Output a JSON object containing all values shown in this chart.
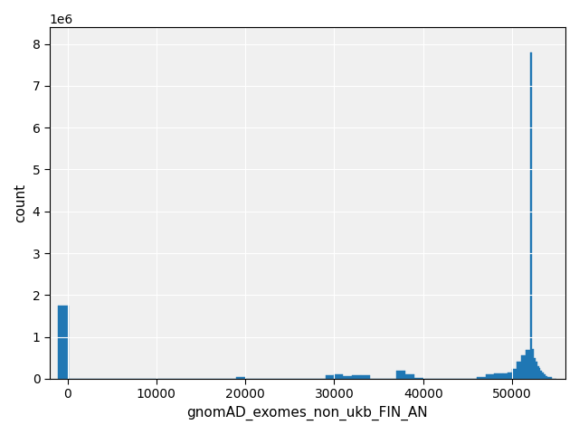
{
  "xlabel": "gnomAD_exomes_non_ukb_FIN_AN",
  "ylabel": "count",
  "bar_color": "#1f77b4",
  "xlim": [
    -2000,
    56000
  ],
  "ylim": [
    0,
    8400000
  ],
  "yticks": [
    0,
    1000000,
    2000000,
    3000000,
    4000000,
    5000000,
    6000000,
    7000000,
    8000000
  ],
  "xticks": [
    0,
    10000,
    20000,
    30000,
    40000,
    50000
  ],
  "bin_edges": [
    -1100,
    200,
    1000,
    2000,
    3000,
    4000,
    5000,
    6000,
    7000,
    8000,
    9000,
    10000,
    11000,
    12000,
    13000,
    14000,
    15000,
    16000,
    17000,
    18000,
    19000,
    20000,
    21000,
    22000,
    23000,
    24000,
    25000,
    26000,
    27000,
    28000,
    29000,
    30000,
    31000,
    32000,
    33000,
    34000,
    35000,
    36000,
    37000,
    38000,
    39000,
    40000,
    41000,
    42000,
    43000,
    44000,
    45000,
    46000,
    47000,
    48000,
    49000,
    49500,
    50000,
    50500,
    51000,
    51500,
    52000,
    52200,
    52400,
    52600,
    52800,
    53000,
    53200,
    53400,
    53600,
    53800,
    54000,
    54500,
    55000
  ],
  "counts": [
    1750000,
    0,
    0,
    0,
    0,
    0,
    0,
    0,
    0,
    0,
    0,
    0,
    0,
    0,
    0,
    0,
    0,
    0,
    0,
    0,
    35000,
    5000,
    0,
    0,
    0,
    0,
    0,
    0,
    0,
    0,
    80000,
    100000,
    60000,
    75000,
    90000,
    5000,
    0,
    0,
    180000,
    110000,
    20000,
    0,
    0,
    0,
    0,
    0,
    5000,
    30000,
    100000,
    130000,
    130000,
    150000,
    240000,
    400000,
    550000,
    680000,
    7800000,
    700000,
    500000,
    400000,
    300000,
    250000,
    200000,
    150000,
    100000,
    60000,
    30000,
    0
  ],
  "figsize": [
    6.4,
    4.8
  ],
  "dpi": 100
}
